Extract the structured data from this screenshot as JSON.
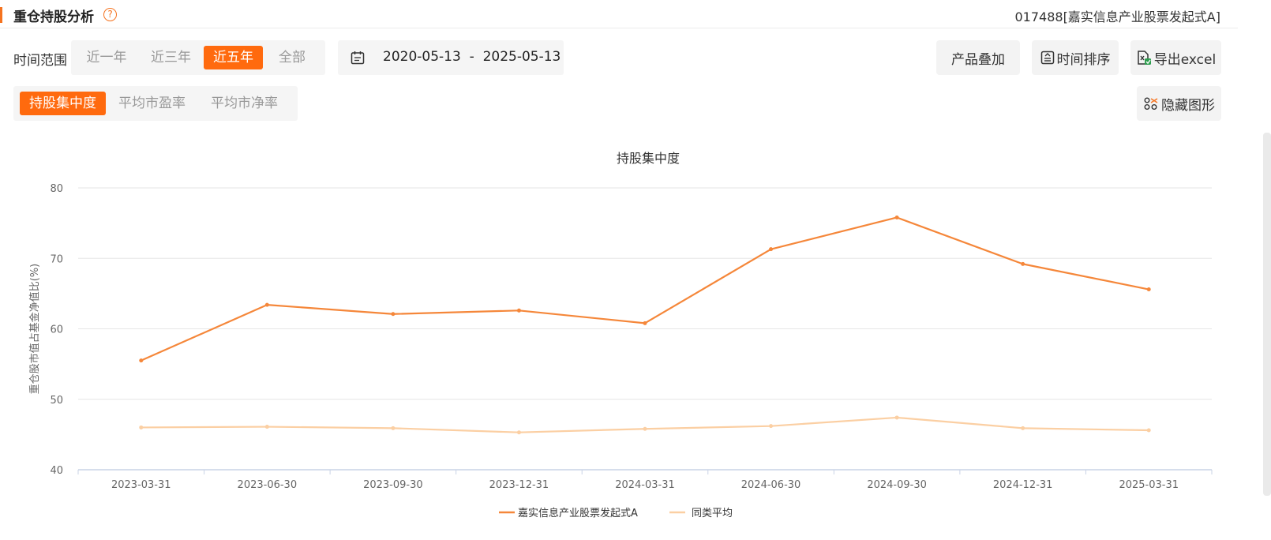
{
  "header": {
    "title": "重仓持股分析",
    "help": "?",
    "fund_label": "017488[嘉实信息产业股票发起式A]"
  },
  "time_range": {
    "label": "时间范围",
    "options": [
      "近一年",
      "近三年",
      "近五年",
      "全部"
    ],
    "active": 2
  },
  "date_range": {
    "start": "2020-05-13",
    "separator": "-",
    "end": "2025-05-13"
  },
  "toolbar": {
    "overlay_label": "产品叠加",
    "sort_label": "时间排序",
    "export_label": "导出excel",
    "hide_label": "隐藏图形"
  },
  "metric_tabs": {
    "options": [
      "持股集中度",
      "平均市盈率",
      "平均市净率"
    ],
    "active": 0
  },
  "colors": {
    "accent": "#ff6a0e",
    "series_fund": "#f5873a",
    "series_avg": "#fbcfa3"
  },
  "chart_data": {
    "type": "line",
    "title": "持股集中度",
    "ylabel": "重仓股市值占基金净值比(%)",
    "xlabel": "",
    "ylim": [
      40,
      80
    ],
    "yticks": [
      40,
      50,
      60,
      70,
      80
    ],
    "grid": true,
    "legend": "bottom-center",
    "categories": [
      "2023-03-31",
      "2023-06-30",
      "2023-09-30",
      "2023-12-31",
      "2024-03-31",
      "2024-06-30",
      "2024-09-30",
      "2024-12-31",
      "2025-03-31"
    ],
    "series": [
      {
        "name": "嘉实信息产业股票发起式A",
        "values": [
          55.5,
          63.4,
          62.1,
          62.6,
          60.8,
          71.3,
          75.8,
          69.2,
          65.6
        ]
      },
      {
        "name": "同类平均",
        "values": [
          46.0,
          46.1,
          45.9,
          45.3,
          45.8,
          46.2,
          47.4,
          45.9,
          45.6
        ]
      }
    ]
  }
}
